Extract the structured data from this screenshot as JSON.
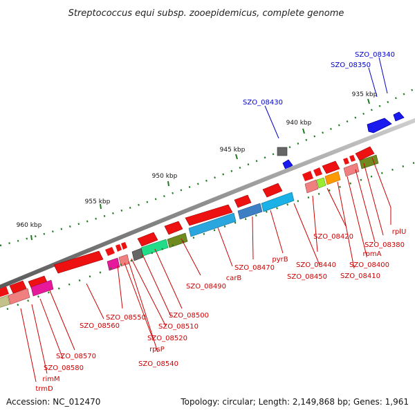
{
  "title": "Streptococcus equi subsp. zooepidemicus, complete genome",
  "footer": {
    "accession": "Accession: NC_012470",
    "summary": "Topology: circular; Length: 2,149,868 bp; Genes: 1,961"
  },
  "colors": {
    "feature_label": "#cc0000",
    "reverse_label": "#0000cc",
    "backbone": "#8f8f8f",
    "tick": "#1f7a1f"
  },
  "scale_ticks": [
    {
      "label": "935 kbp"
    },
    {
      "label": "940 kbp"
    },
    {
      "label": "945 kbp"
    },
    {
      "label": "950 kbp"
    },
    {
      "label": "955 kbp"
    },
    {
      "label": "960 kbp"
    }
  ],
  "forward_labels": [
    {
      "text": "SZO_08340"
    },
    {
      "text": "SZO_08350"
    },
    {
      "text": "SZO_08430"
    }
  ],
  "reverse_labels": [
    {
      "text": "rplU"
    },
    {
      "text": "SZO_08380"
    },
    {
      "text": "rpmA"
    },
    {
      "text": "SZO_08400"
    },
    {
      "text": "SZO_08410"
    },
    {
      "text": "SZO_08420"
    },
    {
      "text": "SZO_08440"
    },
    {
      "text": "SZO_08450"
    },
    {
      "text": "pyrB"
    },
    {
      "text": "SZO_08470"
    },
    {
      "text": "carB"
    },
    {
      "text": "SZO_08490"
    },
    {
      "text": "SZO_08500"
    },
    {
      "text": "SZO_08510"
    },
    {
      "text": "SZO_08520"
    },
    {
      "text": "SZO_08540"
    },
    {
      "text": "rpsP"
    },
    {
      "text": "SZO_08550"
    },
    {
      "text": "SZO_08560"
    },
    {
      "text": "SZO_08570"
    },
    {
      "text": "SZO_08580"
    },
    {
      "text": "rimM"
    },
    {
      "text": "trmD"
    }
  ]
}
